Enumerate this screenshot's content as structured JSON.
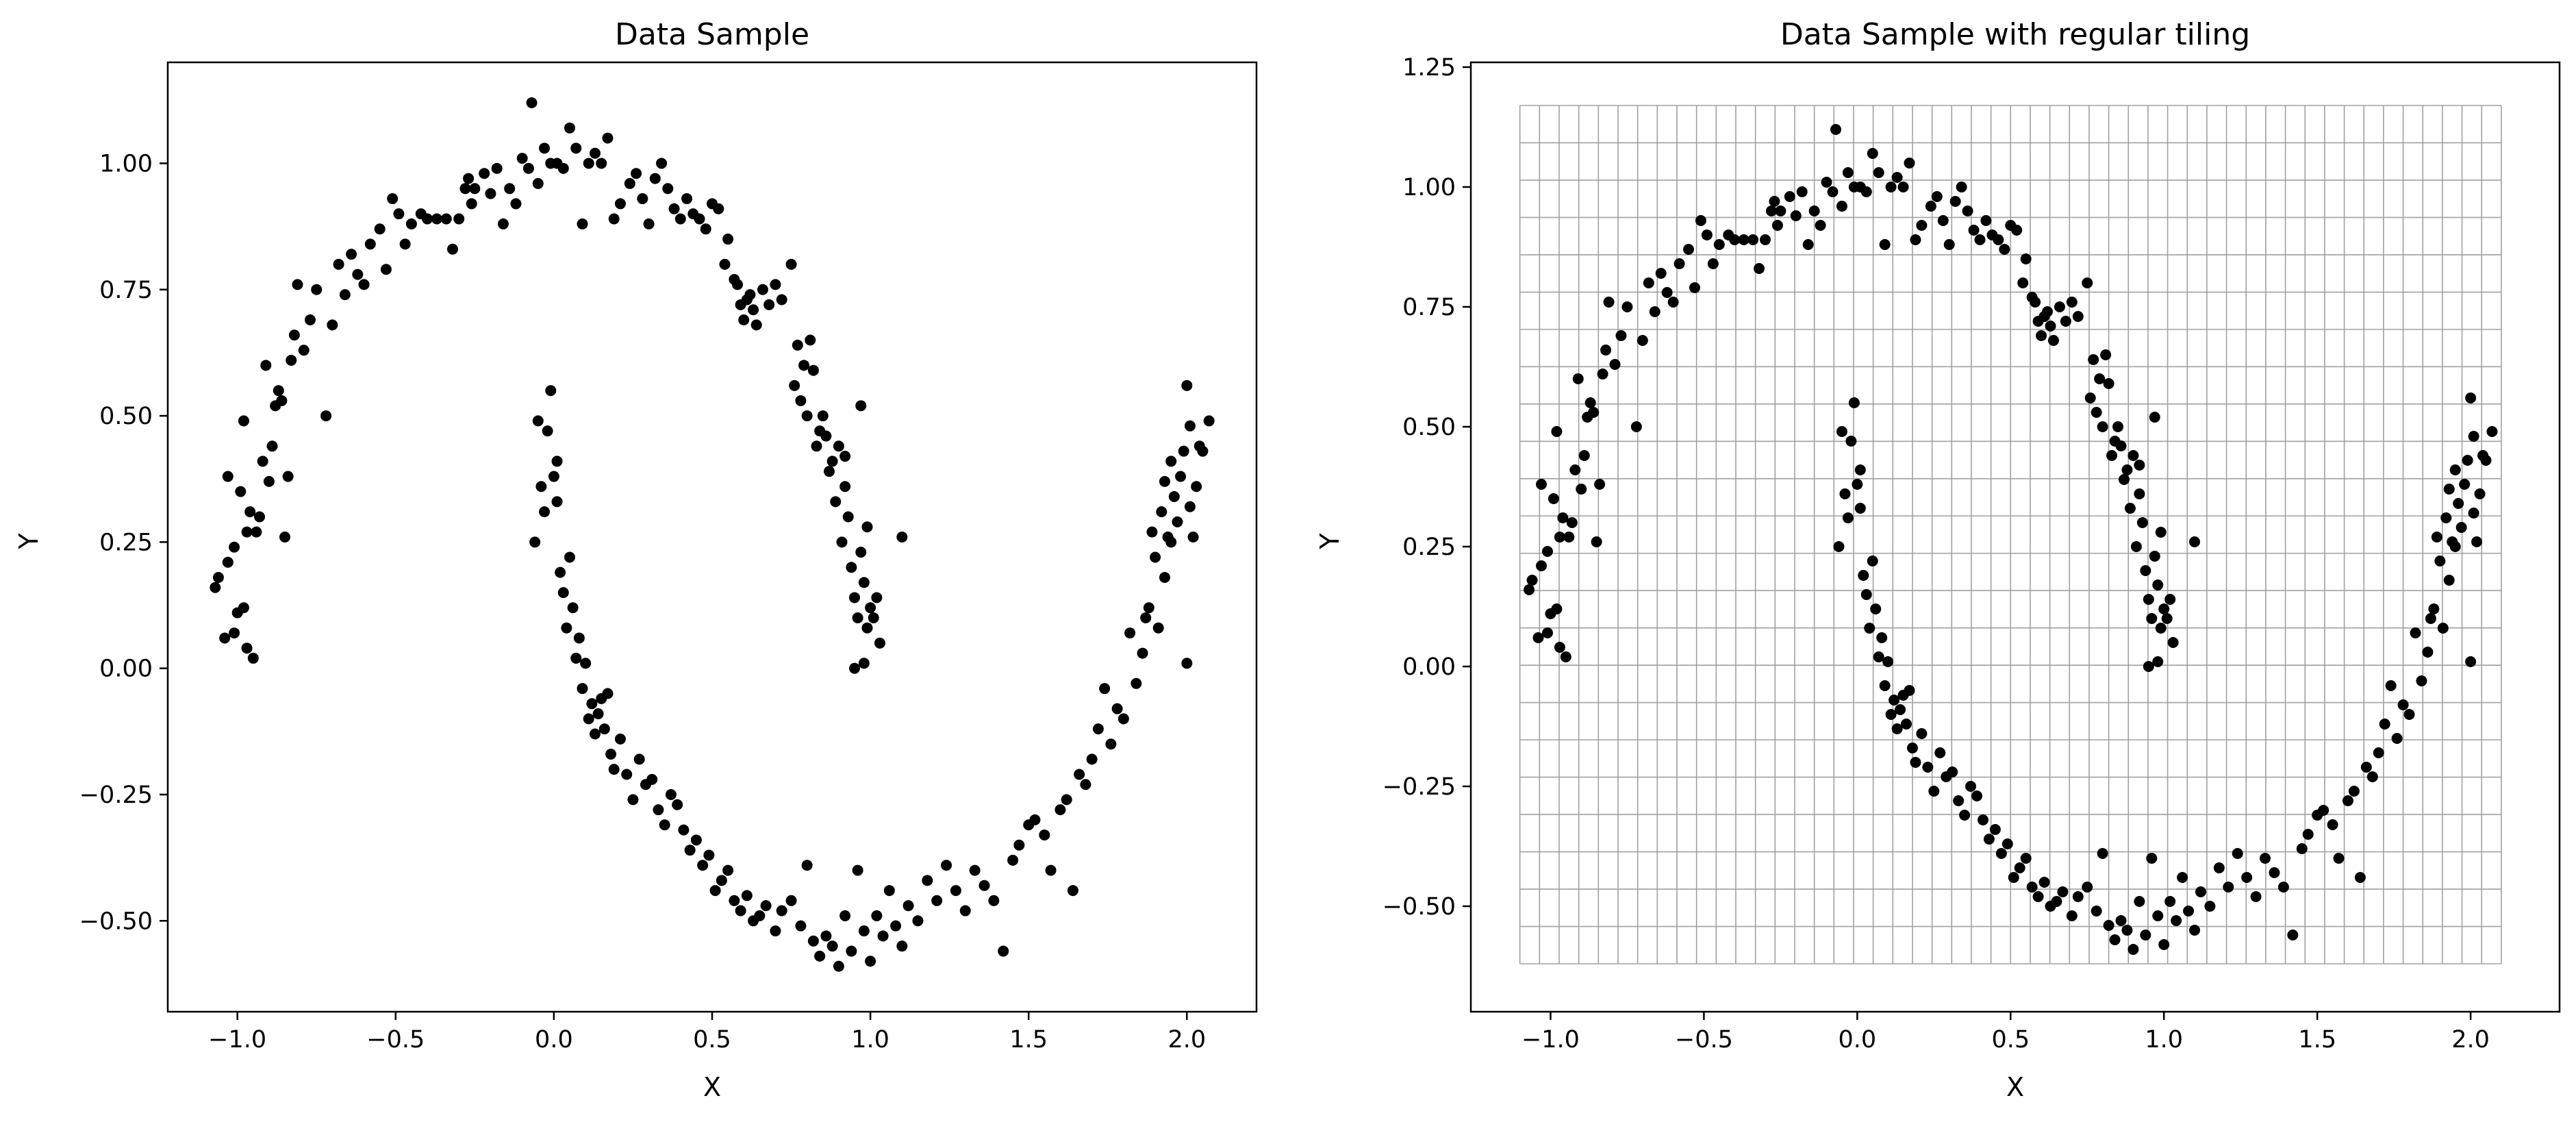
{
  "chart_data": [
    {
      "type": "scatter",
      "title": "Data Sample",
      "xlabel": "X",
      "ylabel": "Y",
      "xlim": [
        -1.22,
        2.22
      ],
      "ylim": [
        -0.68,
        1.2
      ],
      "xticks": [
        -1.0,
        -0.5,
        0.0,
        0.5,
        1.0,
        1.5,
        2.0
      ],
      "xtick_labels": [
        "−1.0",
        "−0.5",
        "0.0",
        "0.5",
        "1.0",
        "1.5",
        "2.0"
      ],
      "yticks": [
        -0.5,
        -0.25,
        0.0,
        0.25,
        0.5,
        0.75,
        1.0
      ],
      "ytick_labels": [
        "−0.50",
        "−0.25",
        "0.00",
        "0.25",
        "0.50",
        "0.75",
        "1.00"
      ],
      "marker_color": "#000000",
      "grid": false,
      "points": "shared:moons"
    },
    {
      "type": "scatter",
      "title": "Data Sample with regular tiling",
      "xlabel": "X",
      "ylabel": "Y",
      "xlim": [
        -1.26,
        2.29
      ],
      "ylim": [
        -0.72,
        1.26
      ],
      "xticks": [
        -1.0,
        -0.5,
        0.0,
        0.5,
        1.0,
        1.5,
        2.0
      ],
      "xtick_labels": [
        "−1.0",
        "−0.5",
        "0.0",
        "0.5",
        "1.0",
        "1.5",
        "2.0"
      ],
      "yticks": [
        -0.5,
        -0.25,
        0.0,
        0.25,
        0.5,
        0.75,
        1.0,
        1.25
      ],
      "ytick_labels": [
        "−0.50",
        "−0.25",
        "0.00",
        "0.25",
        "0.50",
        "0.75",
        "1.00",
        "1.25"
      ],
      "marker_color": "#000000",
      "grid": true,
      "tiling": {
        "x_range": [
          -1.1,
          2.1
        ],
        "y_range": [
          -0.62,
          1.17
        ],
        "nx": 50,
        "ny": 23,
        "color": "#a0a0a0"
      },
      "points": "shared:moons"
    }
  ],
  "moons": [
    [
      -1.07,
      0.16
    ],
    [
      -1.06,
      0.18
    ],
    [
      -1.04,
      0.06
    ],
    [
      -1.03,
      0.21
    ],
    [
      -1.03,
      0.38
    ],
    [
      -1.01,
      0.24
    ],
    [
      -1.01,
      0.07
    ],
    [
      -1.0,
      0.11
    ],
    [
      -0.99,
      0.35
    ],
    [
      -0.98,
      0.12
    ],
    [
      -0.98,
      0.49
    ],
    [
      -0.97,
      0.27
    ],
    [
      -0.97,
      0.04
    ],
    [
      -0.96,
      0.31
    ],
    [
      -0.95,
      0.02
    ],
    [
      -0.94,
      0.27
    ],
    [
      -0.93,
      0.3
    ],
    [
      -0.92,
      0.41
    ],
    [
      -0.91,
      0.6
    ],
    [
      -0.9,
      0.37
    ],
    [
      -0.89,
      0.44
    ],
    [
      -0.88,
      0.52
    ],
    [
      -0.87,
      0.55
    ],
    [
      -0.86,
      0.53
    ],
    [
      -0.85,
      0.26
    ],
    [
      -0.84,
      0.38
    ],
    [
      -0.83,
      0.61
    ],
    [
      -0.82,
      0.66
    ],
    [
      -0.81,
      0.76
    ],
    [
      -0.79,
      0.63
    ],
    [
      -0.77,
      0.69
    ],
    [
      -0.75,
      0.75
    ],
    [
      -0.72,
      0.5
    ],
    [
      -0.7,
      0.68
    ],
    [
      -0.68,
      0.8
    ],
    [
      -0.66,
      0.74
    ],
    [
      -0.64,
      0.82
    ],
    [
      -0.62,
      0.78
    ],
    [
      -0.6,
      0.76
    ],
    [
      -0.58,
      0.84
    ],
    [
      -0.55,
      0.87
    ],
    [
      -0.53,
      0.79
    ],
    [
      -0.51,
      0.93
    ],
    [
      -0.49,
      0.9
    ],
    [
      -0.47,
      0.84
    ],
    [
      -0.45,
      0.88
    ],
    [
      -0.42,
      0.9
    ],
    [
      -0.4,
      0.89
    ],
    [
      -0.37,
      0.89
    ],
    [
      -0.34,
      0.89
    ],
    [
      -0.32,
      0.83
    ],
    [
      -0.3,
      0.89
    ],
    [
      -0.28,
      0.95
    ],
    [
      -0.27,
      0.97
    ],
    [
      -0.26,
      0.92
    ],
    [
      -0.25,
      0.95
    ],
    [
      -0.22,
      0.98
    ],
    [
      -0.2,
      0.94
    ],
    [
      -0.18,
      0.99
    ],
    [
      -0.16,
      0.88
    ],
    [
      -0.14,
      0.95
    ],
    [
      -0.12,
      0.92
    ],
    [
      -0.1,
      1.01
    ],
    [
      -0.08,
      0.99
    ],
    [
      -0.07,
      1.12
    ],
    [
      -0.05,
      0.96
    ],
    [
      -0.03,
      1.03
    ],
    [
      -0.01,
      1.0
    ],
    [
      0.01,
      1.0
    ],
    [
      0.03,
      0.99
    ],
    [
      0.05,
      1.07
    ],
    [
      0.07,
      1.03
    ],
    [
      0.09,
      0.88
    ],
    [
      0.11,
      1.0
    ],
    [
      0.13,
      1.02
    ],
    [
      0.15,
      1.0
    ],
    [
      0.17,
      1.05
    ],
    [
      0.19,
      0.89
    ],
    [
      0.21,
      0.92
    ],
    [
      0.24,
      0.96
    ],
    [
      0.26,
      0.98
    ],
    [
      0.28,
      0.93
    ],
    [
      0.3,
      0.88
    ],
    [
      0.32,
      0.97
    ],
    [
      0.34,
      1.0
    ],
    [
      0.36,
      0.95
    ],
    [
      0.38,
      0.91
    ],
    [
      0.4,
      0.89
    ],
    [
      0.42,
      0.93
    ],
    [
      0.44,
      0.9
    ],
    [
      0.46,
      0.89
    ],
    [
      0.48,
      0.87
    ],
    [
      0.5,
      0.92
    ],
    [
      0.52,
      0.91
    ],
    [
      0.54,
      0.8
    ],
    [
      0.55,
      0.85
    ],
    [
      0.57,
      0.77
    ],
    [
      0.58,
      0.76
    ],
    [
      0.59,
      0.72
    ],
    [
      0.6,
      0.69
    ],
    [
      0.61,
      0.73
    ],
    [
      0.62,
      0.74
    ],
    [
      0.63,
      0.71
    ],
    [
      0.64,
      0.68
    ],
    [
      0.66,
      0.75
    ],
    [
      0.68,
      0.72
    ],
    [
      0.7,
      0.76
    ],
    [
      0.72,
      0.73
    ],
    [
      0.75,
      0.8
    ],
    [
      0.76,
      0.56
    ],
    [
      0.77,
      0.64
    ],
    [
      0.78,
      0.53
    ],
    [
      0.79,
      0.6
    ],
    [
      0.8,
      0.5
    ],
    [
      0.81,
      0.65
    ],
    [
      0.82,
      0.59
    ],
    [
      0.83,
      0.44
    ],
    [
      0.84,
      0.47
    ],
    [
      0.85,
      0.5
    ],
    [
      0.86,
      0.46
    ],
    [
      0.87,
      0.39
    ],
    [
      0.88,
      0.41
    ],
    [
      0.89,
      0.33
    ],
    [
      0.9,
      0.44
    ],
    [
      0.91,
      0.25
    ],
    [
      0.92,
      0.36
    ],
    [
      0.93,
      0.3
    ],
    [
      0.94,
      0.2
    ],
    [
      0.95,
      0.14
    ],
    [
      0.96,
      0.1
    ],
    [
      0.97,
      0.23
    ],
    [
      0.98,
      0.17
    ],
    [
      0.99,
      0.08
    ],
    [
      1.0,
      0.12
    ],
    [
      1.01,
      0.1
    ],
    [
      1.02,
      0.14
    ],
    [
      0.95,
      0.0
    ],
    [
      0.98,
      0.01
    ],
    [
      1.03,
      0.05
    ],
    [
      1.1,
      0.26
    ],
    [
      0.92,
      0.42
    ],
    [
      0.97,
      0.52
    ],
    [
      0.99,
      0.28
    ],
    [
      -0.06,
      0.25
    ],
    [
      -0.05,
      0.49
    ],
    [
      -0.04,
      0.36
    ],
    [
      -0.03,
      0.31
    ],
    [
      -0.02,
      0.47
    ],
    [
      -0.01,
      0.55
    ],
    [
      0.0,
      0.38
    ],
    [
      0.01,
      0.41
    ],
    [
      0.01,
      0.33
    ],
    [
      0.02,
      0.19
    ],
    [
      0.03,
      0.15
    ],
    [
      0.04,
      0.08
    ],
    [
      0.05,
      0.22
    ],
    [
      0.06,
      0.12
    ],
    [
      0.07,
      0.02
    ],
    [
      0.08,
      0.06
    ],
    [
      0.09,
      -0.04
    ],
    [
      0.1,
      0.01
    ],
    [
      0.11,
      -0.1
    ],
    [
      0.12,
      -0.07
    ],
    [
      0.13,
      -0.13
    ],
    [
      0.14,
      -0.09
    ],
    [
      0.15,
      -0.06
    ],
    [
      0.16,
      -0.12
    ],
    [
      0.17,
      -0.05
    ],
    [
      0.18,
      -0.17
    ],
    [
      0.19,
      -0.2
    ],
    [
      0.21,
      -0.14
    ],
    [
      0.23,
      -0.21
    ],
    [
      0.25,
      -0.26
    ],
    [
      0.27,
      -0.18
    ],
    [
      0.29,
      -0.23
    ],
    [
      0.31,
      -0.22
    ],
    [
      0.33,
      -0.28
    ],
    [
      0.35,
      -0.31
    ],
    [
      0.37,
      -0.25
    ],
    [
      0.39,
      -0.27
    ],
    [
      0.41,
      -0.32
    ],
    [
      0.43,
      -0.36
    ],
    [
      0.45,
      -0.34
    ],
    [
      0.47,
      -0.39
    ],
    [
      0.49,
      -0.37
    ],
    [
      0.51,
      -0.44
    ],
    [
      0.53,
      -0.42
    ],
    [
      0.55,
      -0.4
    ],
    [
      0.57,
      -0.46
    ],
    [
      0.59,
      -0.48
    ],
    [
      0.61,
      -0.45
    ],
    [
      0.63,
      -0.5
    ],
    [
      0.65,
      -0.49
    ],
    [
      0.67,
      -0.47
    ],
    [
      0.7,
      -0.52
    ],
    [
      0.72,
      -0.48
    ],
    [
      0.75,
      -0.46
    ],
    [
      0.78,
      -0.51
    ],
    [
      0.8,
      -0.39
    ],
    [
      0.82,
      -0.54
    ],
    [
      0.84,
      -0.57
    ],
    [
      0.86,
      -0.53
    ],
    [
      0.88,
      -0.55
    ],
    [
      0.9,
      -0.59
    ],
    [
      0.92,
      -0.49
    ],
    [
      0.94,
      -0.56
    ],
    [
      0.96,
      -0.4
    ],
    [
      0.98,
      -0.52
    ],
    [
      1.0,
      -0.58
    ],
    [
      1.02,
      -0.49
    ],
    [
      1.04,
      -0.53
    ],
    [
      1.06,
      -0.44
    ],
    [
      1.08,
      -0.51
    ],
    [
      1.1,
      -0.55
    ],
    [
      1.12,
      -0.47
    ],
    [
      1.15,
      -0.5
    ],
    [
      1.18,
      -0.42
    ],
    [
      1.21,
      -0.46
    ],
    [
      1.24,
      -0.39
    ],
    [
      1.27,
      -0.44
    ],
    [
      1.3,
      -0.48
    ],
    [
      1.33,
      -0.4
    ],
    [
      1.36,
      -0.43
    ],
    [
      1.39,
      -0.46
    ],
    [
      1.42,
      -0.56
    ],
    [
      1.45,
      -0.38
    ],
    [
      1.47,
      -0.35
    ],
    [
      1.5,
      -0.31
    ],
    [
      1.52,
      -0.3
    ],
    [
      1.55,
      -0.33
    ],
    [
      1.57,
      -0.4
    ],
    [
      1.6,
      -0.28
    ],
    [
      1.62,
      -0.26
    ],
    [
      1.64,
      -0.44
    ],
    [
      1.66,
      -0.21
    ],
    [
      1.68,
      -0.23
    ],
    [
      1.7,
      -0.18
    ],
    [
      1.72,
      -0.12
    ],
    [
      1.74,
      -0.04
    ],
    [
      1.76,
      -0.15
    ],
    [
      1.78,
      -0.08
    ],
    [
      1.8,
      -0.1
    ],
    [
      1.82,
      0.07
    ],
    [
      1.84,
      -0.03
    ],
    [
      1.86,
      0.03
    ],
    [
      1.87,
      0.1
    ],
    [
      1.88,
      0.12
    ],
    [
      1.89,
      0.27
    ],
    [
      1.9,
      0.22
    ],
    [
      1.91,
      0.08
    ],
    [
      1.92,
      0.31
    ],
    [
      1.93,
      0.18
    ],
    [
      1.94,
      0.26
    ],
    [
      1.95,
      0.41
    ],
    [
      1.96,
      0.34
    ],
    [
      1.97,
      0.29
    ],
    [
      1.98,
      0.38
    ],
    [
      1.99,
      0.43
    ],
    [
      2.0,
      0.56
    ],
    [
      2.01,
      0.32
    ],
    [
      2.02,
      0.26
    ],
    [
      2.03,
      0.36
    ],
    [
      2.04,
      0.44
    ],
    [
      2.05,
      0.43
    ],
    [
      2.07,
      0.49
    ],
    [
      2.0,
      0.01
    ],
    [
      1.95,
      0.25
    ],
    [
      1.93,
      0.37
    ],
    [
      2.01,
      0.48
    ]
  ]
}
